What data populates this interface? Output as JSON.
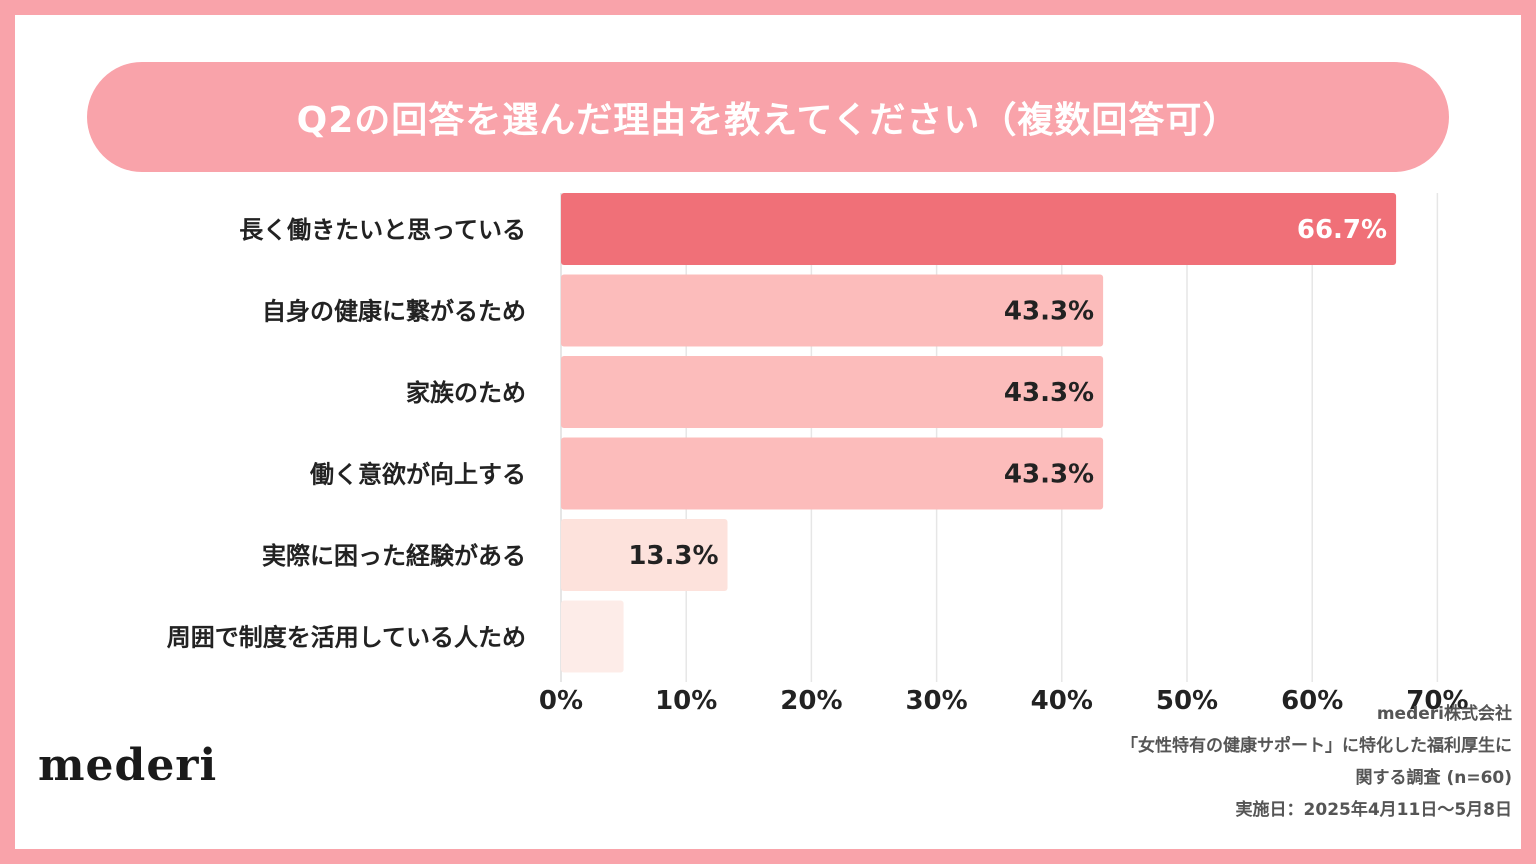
{
  "title": "Q2の回答を選んだ理由を教えてください（複数回答可）",
  "chart_data": {
    "type": "bar",
    "orientation": "horizontal",
    "categories": [
      "長く働きたいと思っている",
      "自身の健康に繋がるため",
      "家族のため",
      "働く意欲が向上する",
      "実際に困った経験がある",
      "周囲で制度を活用している人ため"
    ],
    "values": [
      66.7,
      43.3,
      43.3,
      43.3,
      13.3,
      5
    ],
    "value_labels": [
      "66.7%",
      "43.3%",
      "43.3%",
      "43.3%",
      "13.3%",
      ""
    ],
    "bar_colors": [
      "#f07078",
      "#fcbcbb",
      "#fcbcbb",
      "#fcbcbb",
      "#fde2dc",
      "#fdece8"
    ],
    "label_colors": [
      "#ffffff",
      "#222222",
      "#222222",
      "#222222",
      "#222222",
      "#222222"
    ],
    "xlim": [
      0,
      70
    ],
    "xticks": [
      "0%",
      "10%",
      "20%",
      "30%",
      "40%",
      "50%",
      "60%",
      "70%"
    ],
    "grid": true
  },
  "logo": "mederi",
  "footer": {
    "company": "mederi株式会社",
    "survey_line1": "「女性特有の健康サポート」に特化した福利厚生に",
    "survey_line2": "関する調査 (n=60)",
    "date": "実施日：2025年4月11日〜5月8日"
  }
}
